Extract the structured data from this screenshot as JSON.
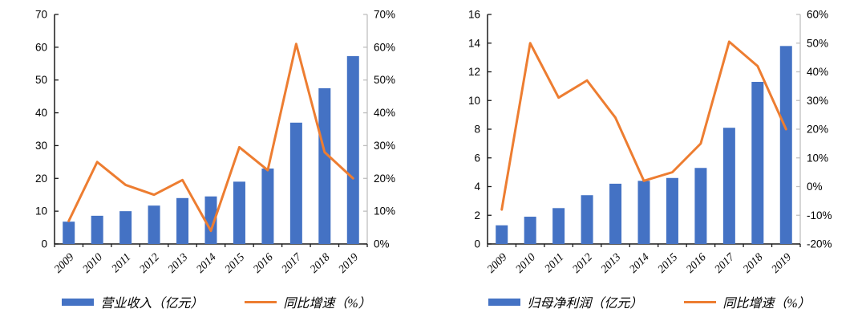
{
  "figure": {
    "background": "#ffffff"
  },
  "colors": {
    "bar": "#4472C4",
    "line": "#ED7D31",
    "axis_primary": "#1a1a1a",
    "axis_secondary": "#BFBFBF",
    "text": "#000000"
  },
  "chart_data": [
    {
      "type": "bar+line",
      "title": "",
      "categories": [
        "2009",
        "2010",
        "2011",
        "2012",
        "2013",
        "2014",
        "2015",
        "2016",
        "2017",
        "2018",
        "2019"
      ],
      "series": [
        {
          "name": "营业收入（亿元）",
          "type": "bar",
          "axis": "left",
          "values": [
            6.8,
            8.6,
            10.0,
            11.7,
            14.0,
            14.5,
            19.0,
            23.0,
            37.0,
            47.5,
            57.3
          ]
        },
        {
          "name": "同比增速（%）",
          "type": "line",
          "axis": "right",
          "values": [
            7,
            25,
            18,
            15,
            19.5,
            4,
            29.5,
            22.5,
            61,
            28,
            20
          ]
        }
      ],
      "left_axis": {
        "min": 0,
        "max": 70,
        "step": 10,
        "labels": [
          "0",
          "10",
          "20",
          "30",
          "40",
          "50",
          "60",
          "70"
        ]
      },
      "right_axis": {
        "min": 0,
        "max": 70,
        "step": 10,
        "labels": [
          "0%",
          "10%",
          "20%",
          "30%",
          "40%",
          "50%",
          "60%",
          "70%"
        ]
      },
      "grid": false,
      "legend_position": "bottom"
    },
    {
      "type": "bar+line",
      "title": "",
      "categories": [
        "2009",
        "2010",
        "2011",
        "2012",
        "2013",
        "2014",
        "2015",
        "2016",
        "2017",
        "2018",
        "2019"
      ],
      "series": [
        {
          "name": "归母净利润（亿元）",
          "type": "bar",
          "axis": "left",
          "values": [
            1.3,
            1.9,
            2.5,
            3.4,
            4.2,
            4.4,
            4.6,
            5.3,
            8.1,
            11.3,
            13.8
          ]
        },
        {
          "name": "同比增速（%）",
          "type": "line",
          "axis": "right",
          "values": [
            -8,
            50,
            31,
            37,
            24,
            2,
            5,
            15,
            50.5,
            42,
            20
          ]
        }
      ],
      "left_axis": {
        "min": 0,
        "max": 16,
        "step": 2,
        "labels": [
          "0",
          "2",
          "4",
          "6",
          "8",
          "10",
          "12",
          "14",
          "16"
        ]
      },
      "right_axis": {
        "min": -20,
        "max": 60,
        "step": 10,
        "labels": [
          "-20%",
          "-10%",
          "0%",
          "10%",
          "20%",
          "30%",
          "40%",
          "50%",
          "60%"
        ]
      },
      "grid": false,
      "legend_position": "bottom"
    }
  ]
}
